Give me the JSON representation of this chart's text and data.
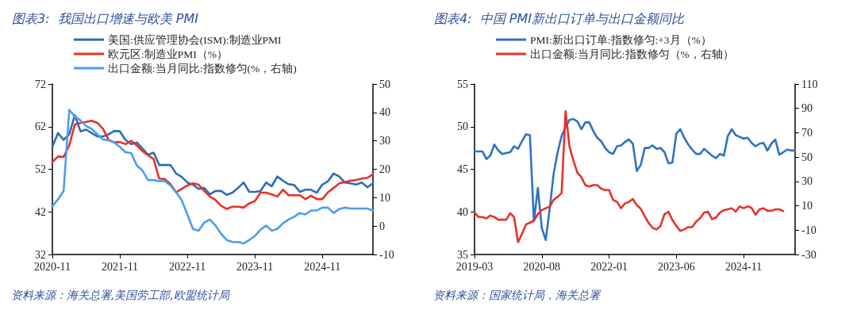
{
  "chart_data": [
    {
      "type": "line",
      "title": "图表3:  我国出口增速与欧美 PMI",
      "categories": [
        "2020-11",
        null,
        null,
        null,
        null,
        null,
        null,
        null,
        null,
        null,
        null,
        null,
        "2021-11",
        null,
        null,
        null,
        null,
        null,
        null,
        null,
        null,
        null,
        null,
        null,
        "2022-11",
        null,
        null,
        null,
        null,
        null,
        null,
        null,
        null,
        null,
        null,
        null,
        "2023-11",
        null,
        null,
        null,
        null,
        null,
        null,
        null,
        null,
        null,
        null,
        null,
        "2024-11",
        null,
        null,
        null,
        null,
        null,
        null,
        null,
        null,
        null
      ],
      "series": [
        {
          "name": "美国:供应管理协会(ISM):制造业PMI",
          "color": "#2e6db4",
          "values": [
            57.3,
            60.5,
            58.9,
            60.2,
            64.7,
            60.9,
            61.3,
            60.5,
            59.7,
            59.7,
            60.2,
            61,
            60.9,
            58.9,
            57.9,
            58.3,
            56.9,
            55.4,
            55.9,
            53,
            53,
            53,
            51,
            50.2,
            48.9,
            48.4,
            47.4,
            47.6,
            46.1,
            46.9,
            46.9,
            46,
            46.5,
            47.6,
            48.9,
            46.7,
            46.7,
            46.9,
            48.9,
            48,
            50.3,
            49.3,
            48.5,
            48.3,
            46.7,
            47.2,
            47.2,
            46.5,
            48.4,
            49.2,
            51,
            50.3,
            48.9,
            48.7,
            48.4,
            48.9,
            47.8,
            48.7
          ]
        },
        {
          "name": "欧元区:制造业PMI（%）",
          "color": "#e8312a",
          "values": [
            53.7,
            55,
            54.9,
            57.6,
            62.5,
            62.9,
            63.1,
            63.4,
            62.9,
            61.5,
            58.9,
            58.3,
            58.4,
            57.9,
            58.7,
            57.6,
            56.3,
            55.3,
            54.4,
            49.8,
            49.7,
            48.5,
            46.6,
            47.4,
            48.2,
            48.7,
            48.4,
            46.9,
            45.6,
            44.8,
            43.4,
            42.7,
            43.2,
            43.2,
            43,
            44,
            44.5,
            46.5,
            46.5,
            46.1,
            45.6,
            47.2,
            45.9,
            45.9,
            45.9,
            45,
            45.8,
            45,
            45,
            46.6,
            47.6,
            48.7,
            49,
            49.3,
            49.5,
            49.8,
            50,
            50.8
          ]
        },
        {
          "name": "出口金额:当月同比:指数修匀(%，右轴)",
          "color": "#4a9eee",
          "axis": "y2",
          "values": [
            7,
            9.4,
            12.4,
            40.9,
            38.6,
            37.2,
            35.2,
            34.2,
            32.3,
            30.5,
            30.2,
            29.4,
            27.9,
            26,
            25.7,
            21.4,
            19.6,
            16.2,
            16.2,
            15.8,
            15.8,
            14.3,
            11.9,
            9.1,
            4.1,
            -1,
            -1.6,
            1.2,
            2.3,
            0.2,
            -2.7,
            -4.9,
            -5.6,
            -5.6,
            -6.1,
            -4.9,
            -3.5,
            -1.3,
            0.2,
            -1.6,
            -1,
            1,
            2.3,
            3.3,
            4.6,
            4.1,
            5.5,
            5.5,
            6.5,
            6.5,
            4.6,
            6,
            6.5,
            6.2,
            6.2,
            6.2,
            6.2,
            5.5
          ]
        }
      ],
      "ylim": [
        32,
        72
      ],
      "yticks": [
        32,
        42,
        52,
        62,
        72
      ],
      "y2lim": [
        -10,
        50
      ],
      "y2ticks": [
        -10,
        0,
        10,
        20,
        30,
        40,
        50
      ],
      "legend": "top left",
      "grid": false,
      "marker": "none",
      "line_style": "solid",
      "annotations": [
        "资料来源：海关总署,美国劳工部,欧盟统计局"
      ]
    },
    {
      "type": "line",
      "title": "图表4:  中国 PMI新出口订单与出口金额同比",
      "categories": [
        "2019-03",
        null,
        null,
        null,
        null,
        null,
        null,
        null,
        null,
        null,
        null,
        null,
        null,
        null,
        null,
        null,
        null,
        "2020-08",
        null,
        null,
        null,
        null,
        null,
        null,
        null,
        null,
        null,
        null,
        null,
        null,
        null,
        null,
        null,
        null,
        "2022-01",
        null,
        null,
        null,
        null,
        null,
        null,
        null,
        null,
        null,
        null,
        null,
        null,
        null,
        null,
        null,
        null,
        "2023-06",
        null,
        null,
        null,
        null,
        null,
        null,
        null,
        null,
        null,
        null,
        null,
        null,
        null,
        null,
        null,
        null,
        "2024-11",
        null,
        null,
        null,
        null,
        null,
        null,
        null,
        null,
        null,
        null,
        null,
        null,
        null
      ],
      "series": [
        {
          "name": "PMI:新出口订单:指数修匀:+3月（%）",
          "color": "#2f72c4",
          "values": [
            47.1,
            47.1,
            47.1,
            46.2,
            46.6,
            47.9,
            47.2,
            46.8,
            46.9,
            47,
            47.7,
            47.4,
            48.3,
            49.1,
            49,
            38.9,
            42.8,
            38.1,
            36.7,
            40.4,
            44.5,
            47,
            48.9,
            49.9,
            50.8,
            50.9,
            50.6,
            49.7,
            50.5,
            50.5,
            49.5,
            48.7,
            48.3,
            47.5,
            47,
            46.8,
            47.7,
            47.8,
            48.2,
            48.5,
            48,
            44.8,
            45.5,
            47.5,
            47.5,
            47.8,
            47.4,
            47.5,
            47,
            45.7,
            45.8,
            49.2,
            49.7,
            48.7,
            47.9,
            47.3,
            46.8,
            46.8,
            47.4,
            47,
            46.6,
            46.3,
            46.8,
            46.6,
            48.9,
            49.7,
            49,
            48.8,
            48.6,
            48.7,
            48.1,
            47.7,
            48,
            48.1,
            47.2,
            48,
            48.5,
            46.7,
            47,
            47.3,
            47.2,
            47.2
          ]
        },
        {
          "name": "出口金额:当月同比:指数修匀（%，右轴）",
          "color": "#e8312a",
          "axis": "y2",
          "values": [
            4.4,
            0.8,
            0.8,
            -0.4,
            2,
            0.8,
            -1.4,
            -1.4,
            -1.4,
            3.9,
            0.8,
            -19.9,
            -13,
            -5.3,
            -3.8,
            -2.1,
            3.2,
            6.4,
            8,
            9.3,
            14.9,
            17.3,
            20.4,
            87.7,
            58.5,
            46.9,
            37.2,
            33.5,
            27,
            25.8,
            27,
            27,
            24.1,
            22.9,
            22.9,
            14.9,
            13.2,
            8,
            11.9,
            13.2,
            15.6,
            10.5,
            7.6,
            1.5,
            -4.1,
            -8.2,
            -9.4,
            -6.5,
            3.2,
            5.1,
            -1.7,
            -6.5,
            -10.6,
            -9.4,
            -7.5,
            -7.5,
            -2.9,
            -0.2,
            4.4,
            5.1,
            -0.9,
            0.3,
            4.4,
            6.4,
            7.1,
            8,
            5.1,
            9.5,
            8,
            9.5,
            8.3,
            2.7,
            7.1,
            8,
            5.9,
            5.9,
            7.1,
            7.1,
            5.6,
            null,
            null,
            null
          ]
        }
      ],
      "ylim": [
        35,
        55
      ],
      "yticks": [
        35,
        40,
        45,
        50,
        55
      ],
      "y2lim": [
        -30,
        110
      ],
      "y2ticks": [
        -30,
        -10,
        10,
        30,
        50,
        70,
        90,
        110
      ],
      "legend": "top left",
      "grid": false,
      "marker": "none",
      "line_style": "solid",
      "annotations": [
        "资料来源：国家统计局，海关总署"
      ]
    }
  ]
}
